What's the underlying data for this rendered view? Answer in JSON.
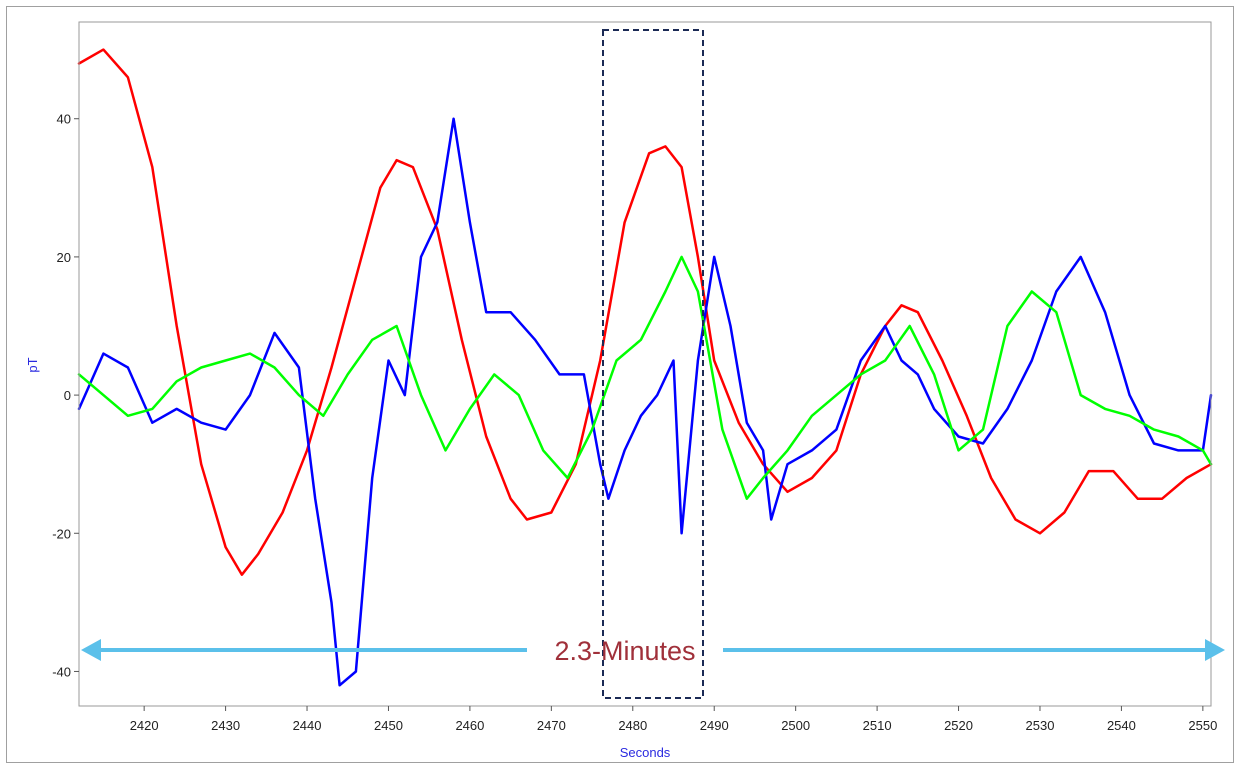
{
  "chart_data": {
    "type": "line",
    "xlabel": "Seconds",
    "ylabel": "pT",
    "xlim": [
      2412,
      2551
    ],
    "ylim": [
      -45,
      54
    ],
    "x_ticks": [
      2420,
      2430,
      2440,
      2450,
      2460,
      2470,
      2480,
      2490,
      2500,
      2510,
      2520,
      2530,
      2540,
      2550
    ],
    "y_ticks": [
      -40,
      -20,
      0,
      20,
      40
    ],
    "grid": false,
    "legend": "none",
    "series": [
      {
        "color": "#ff0000",
        "x": [
          2412,
          2415,
          2418,
          2421,
          2424,
          2427,
          2430,
          2432,
          2434,
          2437,
          2440,
          2443,
          2446,
          2449,
          2451,
          2453,
          2456,
          2459,
          2462,
          2465,
          2467,
          2470,
          2473,
          2476,
          2479,
          2482,
          2484,
          2486,
          2488,
          2490,
          2493,
          2496,
          2499,
          2502,
          2505,
          2508,
          2511,
          2513,
          2515,
          2518,
          2521,
          2524,
          2527,
          2530,
          2533,
          2536,
          2539,
          2542,
          2545,
          2548,
          2551
        ],
        "y": [
          48,
          50,
          46,
          33,
          10,
          -10,
          -22,
          -26,
          -23,
          -17,
          -8,
          4,
          17,
          30,
          34,
          33,
          24,
          8,
          -6,
          -15,
          -18,
          -17,
          -10,
          5,
          25,
          35,
          36,
          33,
          20,
          5,
          -4,
          -10,
          -14,
          -12,
          -8,
          3,
          10,
          13,
          12,
          5,
          -3,
          -12,
          -18,
          -20,
          -17,
          -11,
          -11,
          -15,
          -15,
          -12,
          -10
        ]
      },
      {
        "color": "#0000ff",
        "x": [
          2412,
          2415,
          2418,
          2421,
          2424,
          2427,
          2430,
          2433,
          2436,
          2439,
          2441,
          2443,
          2444,
          2446,
          2448,
          2450,
          2452,
          2454,
          2456,
          2458,
          2460,
          2462,
          2465,
          2468,
          2471,
          2474,
          2476,
          2477,
          2479,
          2481,
          2483,
          2485,
          2486,
          2488,
          2490,
          2492,
          2494,
          2496,
          2497,
          2499,
          2502,
          2505,
          2508,
          2511,
          2513,
          2515,
          2517,
          2520,
          2523,
          2526,
          2529,
          2532,
          2535,
          2538,
          2541,
          2544,
          2547,
          2550,
          2551
        ],
        "y": [
          -2,
          6,
          4,
          -4,
          -2,
          -4,
          -5,
          0,
          9,
          4,
          -15,
          -30,
          -42,
          -40,
          -12,
          5,
          0,
          20,
          25,
          40,
          25,
          12,
          12,
          8,
          3,
          3,
          -10,
          -15,
          -8,
          -3,
          0,
          5,
          -20,
          5,
          20,
          10,
          -4,
          -8,
          -18,
          -10,
          -8,
          -5,
          5,
          10,
          5,
          3,
          -2,
          -6,
          -7,
          -2,
          5,
          15,
          20,
          12,
          0,
          -7,
          -8,
          -8,
          0
        ]
      },
      {
        "color": "#00ff00",
        "x": [
          2412,
          2415,
          2418,
          2421,
          2424,
          2427,
          2430,
          2433,
          2436,
          2439,
          2442,
          2445,
          2448,
          2451,
          2454,
          2457,
          2460,
          2463,
          2466,
          2469,
          2472,
          2475,
          2478,
          2481,
          2484,
          2486,
          2488,
          2491,
          2494,
          2496,
          2499,
          2502,
          2505,
          2508,
          2511,
          2514,
          2517,
          2520,
          2523,
          2526,
          2529,
          2532,
          2535,
          2538,
          2541,
          2544,
          2547,
          2550,
          2551
        ],
        "y": [
          3,
          0,
          -3,
          -2,
          2,
          4,
          5,
          6,
          4,
          0,
          -3,
          3,
          8,
          10,
          0,
          -8,
          -2,
          3,
          0,
          -8,
          -12,
          -5,
          5,
          8,
          15,
          20,
          15,
          -5,
          -15,
          -12,
          -8,
          -3,
          0,
          3,
          5,
          10,
          3,
          -8,
          -5,
          10,
          15,
          12,
          0,
          -2,
          -3,
          -5,
          -6,
          -8,
          -10
        ]
      }
    ],
    "annotations": {
      "duration_label": "2.3-Minutes"
    }
  }
}
